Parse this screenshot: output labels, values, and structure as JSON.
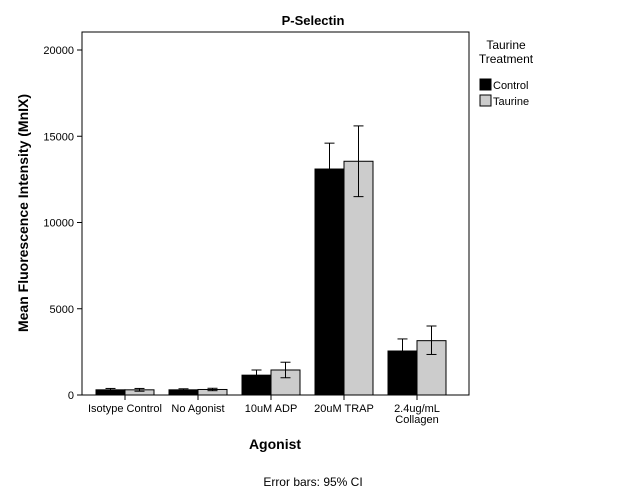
{
  "chart_data": {
    "type": "bar",
    "title": "P-Selectin",
    "xlabel": "Agonist",
    "ylabel": "Mean Fluorescence Intensity (MnIX)",
    "ylim": [
      0,
      21000
    ],
    "yticks": [
      0,
      5000,
      10000,
      15000,
      20000
    ],
    "grid": false,
    "legend": {
      "title_lines": [
        "Taurine",
        "Treatment"
      ],
      "placement": "right"
    },
    "categories": [
      [
        "Isotype Control"
      ],
      [
        "No Agonist"
      ],
      [
        "10uM ADP"
      ],
      [
        "20uM TRAP"
      ],
      [
        "2.4ug/mL",
        "Collagen"
      ]
    ],
    "series": [
      {
        "name": "Control",
        "color": "#000000",
        "values": [
          300,
          300,
          1150,
          13100,
          2550
        ],
        "ci_low": [
          220,
          240,
          850,
          11550,
          1950
        ],
        "ci_high": [
          380,
          360,
          1450,
          14600,
          3250
        ]
      },
      {
        "name": "Taurine",
        "color": "#cccccc",
        "values": [
          300,
          320,
          1450,
          13550,
          3150
        ],
        "ci_low": [
          220,
          250,
          1000,
          11500,
          2350
        ],
        "ci_high": [
          380,
          390,
          1900,
          15600,
          4000
        ]
      }
    ],
    "footnote": "Error bars: 95% CI"
  }
}
